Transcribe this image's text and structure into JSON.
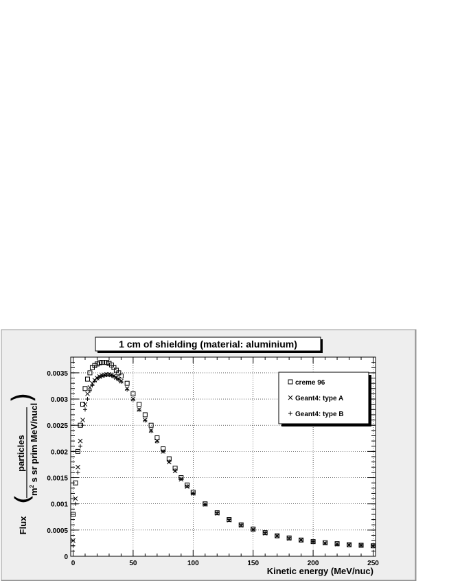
{
  "chart_data": {
    "type": "scatter",
    "title": "1 cm of shielding (material: aluminium)",
    "xlabel": "Kinetic energy (MeV/nuc)",
    "ylabel": {
      "prefix": "Flux",
      "numerator": "particles",
      "denominator_base": "m",
      "denominator_exp": "2",
      "denominator_rest": " s sr prim MeV/nucl"
    },
    "xlim": [
      -2,
      252
    ],
    "ylim": [
      0,
      0.0038
    ],
    "xticks": [
      0,
      50,
      100,
      150,
      200,
      250
    ],
    "xtick_labels": [
      "0",
      "50",
      "100",
      "150",
      "200",
      "250"
    ],
    "yticks": [
      0,
      0.0005,
      0.001,
      0.0015,
      0.002,
      0.0025,
      0.003,
      0.0035
    ],
    "ytick_labels": [
      "0",
      "0.0005",
      "0.001",
      "0.0015",
      "0.002",
      "0.0025",
      "0.003",
      "0.0035"
    ],
    "grid": true,
    "legend_position": "top-right",
    "series": [
      {
        "name": "creme 96",
        "marker": "open-square",
        "x": [
          0,
          2,
          4,
          6,
          8,
          10,
          12,
          14,
          16,
          18,
          20,
          22,
          24,
          26,
          28,
          30,
          32,
          34,
          36,
          38,
          40,
          45,
          50,
          55,
          60,
          65,
          70,
          75,
          80,
          85,
          90,
          95,
          100,
          110,
          120,
          130,
          140,
          150,
          160,
          170,
          180,
          190,
          200,
          210,
          220,
          230,
          240,
          250
        ],
        "y": [
          0.0008,
          0.0014,
          0.002,
          0.0025,
          0.0029,
          0.0032,
          0.00338,
          0.0035,
          0.0036,
          0.00364,
          0.00367,
          0.00369,
          0.0037,
          0.0037,
          0.0037,
          0.00368,
          0.00365,
          0.0036,
          0.00355,
          0.0035,
          0.00344,
          0.0033,
          0.0031,
          0.0029,
          0.0027,
          0.0025,
          0.00226,
          0.00205,
          0.00186,
          0.00168,
          0.0015,
          0.00136,
          0.00122,
          0.001,
          0.00083,
          0.0007,
          0.0006,
          0.00052,
          0.00045,
          0.00039,
          0.00035,
          0.00031,
          0.00028,
          0.00026,
          0.00024,
          0.00022,
          0.00021,
          0.0002
        ]
      },
      {
        "name": "Geant4: type A",
        "marker": "x",
        "x": [
          0,
          2,
          4,
          6,
          8,
          10,
          12,
          14,
          16,
          18,
          20,
          22,
          24,
          26,
          28,
          30,
          32,
          34,
          36,
          38,
          40,
          45,
          50,
          55,
          60,
          65,
          70,
          75,
          80,
          85,
          90,
          95,
          100,
          110,
          120,
          130,
          140,
          150,
          160,
          170,
          180,
          190,
          200,
          210,
          220,
          230,
          240,
          250
        ],
        "y": [
          0.0003,
          0.0011,
          0.0017,
          0.0022,
          0.0026,
          0.0029,
          0.0031,
          0.00322,
          0.0033,
          0.00336,
          0.0034,
          0.00343,
          0.00345,
          0.00346,
          0.00347,
          0.00347,
          0.00346,
          0.00344,
          0.00341,
          0.00338,
          0.00334,
          0.0032,
          0.003,
          0.0028,
          0.0026,
          0.0024,
          0.0022,
          0.002,
          0.0018,
          0.00163,
          0.00147,
          0.00133,
          0.0012,
          0.00099,
          0.00082,
          0.00069,
          0.00059,
          0.00051,
          0.00044,
          0.00039,
          0.00034,
          0.00031,
          0.00028,
          0.00025,
          0.00023,
          0.00022,
          0.00021,
          0.0002
        ]
      },
      {
        "name": "Geant4: type B",
        "marker": "plus",
        "x": [
          0,
          2,
          4,
          6,
          8,
          10,
          12,
          14,
          16,
          18,
          20,
          22,
          24,
          26,
          28,
          30,
          32,
          34,
          36,
          38,
          40,
          45,
          50,
          55,
          60,
          65,
          70,
          75,
          80,
          85,
          90,
          95,
          100,
          110,
          120,
          130,
          140,
          150,
          160,
          170,
          180,
          190,
          200,
          210,
          220,
          230,
          240,
          250
        ],
        "y": [
          0.0002,
          0.001,
          0.0016,
          0.0021,
          0.0025,
          0.0028,
          0.003,
          0.00316,
          0.00326,
          0.00334,
          0.00339,
          0.00342,
          0.00344,
          0.00345,
          0.00346,
          0.00346,
          0.00345,
          0.00343,
          0.0034,
          0.00337,
          0.00333,
          0.00318,
          0.00299,
          0.00279,
          0.00259,
          0.00239,
          0.00219,
          0.002,
          0.00181,
          0.00164,
          0.00148,
          0.00134,
          0.0012,
          0.00099,
          0.00083,
          0.0007,
          0.0006,
          0.00051,
          0.00045,
          0.00039,
          0.00035,
          0.00031,
          0.00028,
          0.00025,
          0.00023,
          0.00022,
          0.00021,
          0.0002
        ]
      }
    ],
    "colors": {
      "frame_background": "#eeeeee",
      "plot_background": "#ffffff",
      "markers": "#000000",
      "grid": "#000000"
    }
  }
}
